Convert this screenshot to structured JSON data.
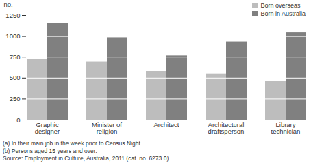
{
  "chart_data": {
    "type": "bar",
    "y_label": "no.",
    "categories": [
      "Graphic designer",
      "Minister of religion",
      "Architect",
      "Architectural draftsperson",
      "Library technician"
    ],
    "series": [
      {
        "name": "Born overseas",
        "color": "#bdbdbd",
        "values": [
          725,
          690,
          580,
          550,
          460
        ]
      },
      {
        "name": "Born in Australia",
        "color": "#808080",
        "values": [
          1160,
          985,
          765,
          935,
          1045
        ]
      }
    ],
    "ylim": [
      0,
      1250
    ],
    "yticks": [
      0,
      250,
      500,
      750,
      1000,
      1250
    ],
    "grid": true,
    "legend": "top-right",
    "annotations": [
      "(a) In their main job in the week prior to Census Night.",
      "(b) Persons aged 15 years and over.",
      "Source: Employment in Culture, Australia, 2011 (cat. no. 6273.0)."
    ]
  }
}
